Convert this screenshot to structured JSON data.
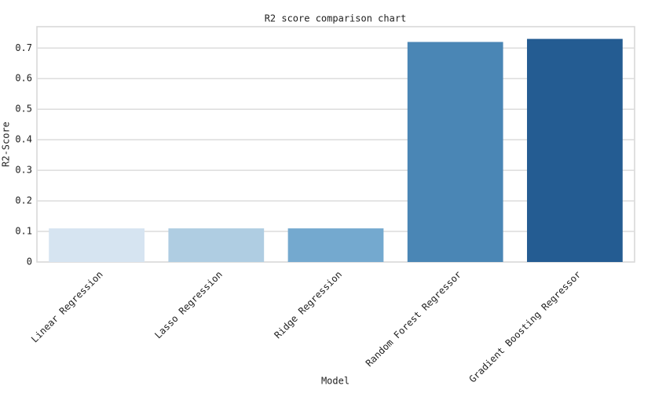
{
  "chart_data": {
    "type": "bar",
    "title": "R2 score comparison chart",
    "x_label": "Model",
    "y_label": "R2-Score",
    "categories": [
      "Linear Regression",
      "Lasso Regression",
      "Ridge Regression",
      "Random Forest Regressor",
      "Gradient Boosting Regressor"
    ],
    "values": [
      0.11,
      0.11,
      0.11,
      0.72,
      0.73
    ],
    "colors": [
      "#d6e4f1",
      "#afcde2",
      "#74a9cf",
      "#4a86b5",
      "#245c92"
    ],
    "ylim": [
      0,
      0.77
    ],
    "yticks": [
      0,
      0.1,
      0.2,
      0.3,
      0.4,
      0.5,
      0.6,
      0.7
    ],
    "grid": true
  }
}
